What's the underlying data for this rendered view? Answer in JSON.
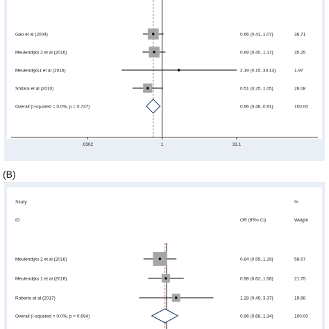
{
  "panel_b_label": "(B)",
  "chart_data": [
    {
      "type": "forest",
      "panel": "A",
      "scale": "log",
      "xlim": [
        0.0302,
        33.1
      ],
      "ticks": [
        {
          "value": 0.0302,
          "label": ".0302"
        },
        {
          "value": 1,
          "label": "1"
        },
        {
          "value": 33.1,
          "label": "33.1"
        }
      ],
      "overall_line": 0.66,
      "studies": [
        {
          "name": "Gao et al (2004)",
          "or": 0.66,
          "lo": 0.41,
          "hi": 1.07,
          "ci_text": "0.66 (0.41, 1.07)",
          "weight": 36.71,
          "weight_text": "36.71"
        },
        {
          "name": "Meulendijks 2 et al (2016)",
          "or": 0.69,
          "lo": 0.4,
          "hi": 1.17,
          "ci_text": "0.69 (0.40, 1.17)",
          "weight": 35.25,
          "weight_text": "35.25"
        },
        {
          "name": "Meulendijks1 et al (2016)",
          "or": 2.19,
          "lo": 0.15,
          "hi": 33.13,
          "ci_text": "2.19 (0.15, 33.13)",
          "weight": 1.97,
          "weight_text": "1.97"
        },
        {
          "name": "Shitara et al (2010)",
          "or": 0.51,
          "lo": 0.25,
          "hi": 1.05,
          "ci_text": "0.51 (0.25, 1.05)",
          "weight": 26.08,
          "weight_text": "26.08"
        }
      ],
      "overall": {
        "name": "Overall  (I-squared = 0.0%, p = 0.737)",
        "or": 0.66,
        "lo": 0.48,
        "hi": 0.91,
        "ci_text": "0.66 (0.48, 0.91)",
        "weight_text": "100.00"
      }
    },
    {
      "type": "forest",
      "panel": "B",
      "scale": "log",
      "xlim": [
        0.1,
        10
      ],
      "header": {
        "study": "Study",
        "id": "ID",
        "pct": "%",
        "or": "OR (95% CI)",
        "weight": "Weight"
      },
      "overall_line": 0.96,
      "studies": [
        {
          "name": "Meulendijks 2 et al (2016)",
          "or": 0.84,
          "lo": 0.55,
          "hi": 1.29,
          "ci_text": "0.84 (0.55, 1.29)",
          "weight": 58.57,
          "weight_text": "58.57"
        },
        {
          "name": "Meulendijks 1 et al (2016)",
          "or": 0.98,
          "lo": 0.62,
          "hi": 1.56,
          "ci_text": "0.98 (0.62, 1.56)",
          "weight": 21.75,
          "weight_text": "21.75"
        },
        {
          "name": "Roberto et al (2017)",
          "or": 1.28,
          "lo": 0.49,
          "hi": 3.37,
          "ci_text": "1.28 (0.49, 3.37)",
          "weight": 19.68,
          "weight_text": "19.68"
        }
      ],
      "overall": {
        "name": "Overall  (I-squared = 0.0%, p = 0.694)",
        "or": 0.96,
        "lo": 0.68,
        "hi": 1.34,
        "ci_text": "0.96 (0.68, 1.34)",
        "weight_text": "100.00"
      }
    }
  ]
}
